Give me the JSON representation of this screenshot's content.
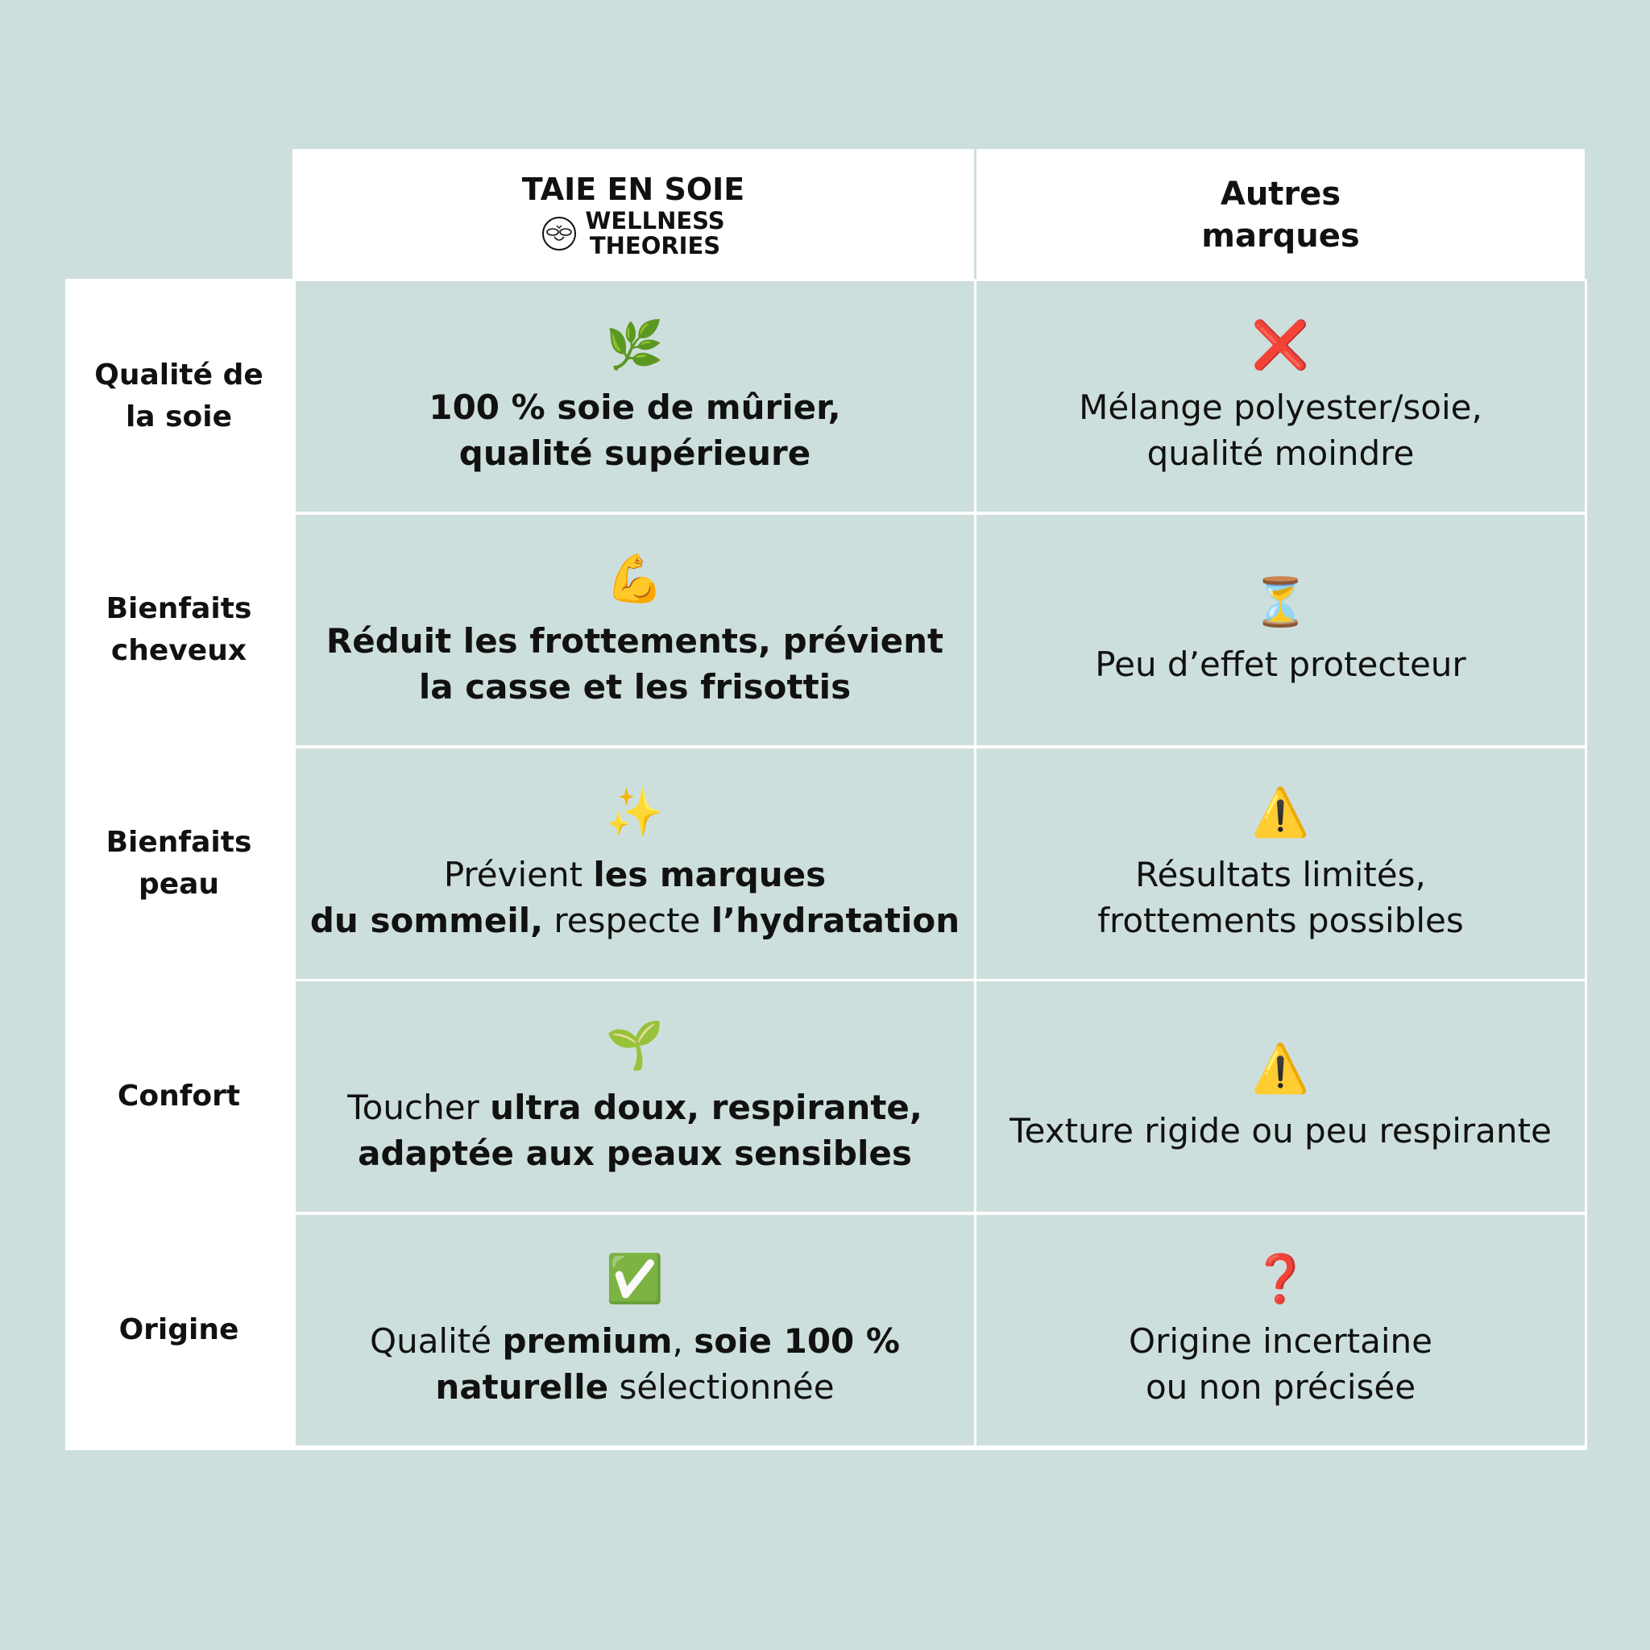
{
  "header": {
    "col1_title": "TAIE EN SOIE",
    "col1_brand_line1": "WELLNESS",
    "col1_brand_line2": "THEORIES",
    "col1_brand_logo": "bee-logo",
    "col2_line1": "Autres",
    "col2_line2": "marques"
  },
  "colors": {
    "background": "#cddfdc",
    "cell_white": "#ffffff",
    "text": "#111111"
  },
  "rows": [
    {
      "label": [
        "Qualité de",
        "la soie"
      ],
      "ours": {
        "icon": "🌿",
        "icon_name": "herb-icon",
        "lines": [
          [
            {
              "t": "100 % soie de mûrier,",
              "b": true
            }
          ],
          [
            {
              "t": "qualité supérieure",
              "b": true
            }
          ]
        ]
      },
      "others": {
        "icon": "❌",
        "icon_name": "cross-mark-icon",
        "lines": [
          [
            {
              "t": "Mélange polyester/soie,",
              "b": false
            }
          ],
          [
            {
              "t": "qualité moindre",
              "b": false
            }
          ]
        ]
      }
    },
    {
      "label": [
        "Bienfaits",
        "cheveux"
      ],
      "ours": {
        "icon": "💪",
        "icon_name": "flexed-biceps-icon",
        "lines": [
          [
            {
              "t": "Réduit les frottements, prévient",
              "b": true
            }
          ],
          [
            {
              "t": "la casse et les frisottis",
              "b": true
            }
          ]
        ]
      },
      "others": {
        "icon": "⏳",
        "icon_name": "hourglass-icon",
        "lines": [
          [
            {
              "t": "Peu d’effet protecteur",
              "b": false
            }
          ]
        ]
      }
    },
    {
      "label": [
        "Bienfaits",
        "peau"
      ],
      "ours": {
        "icon": "✨",
        "icon_name": "sparkles-icon",
        "lines": [
          [
            {
              "t": "Prévient ",
              "b": false
            },
            {
              "t": "les marques",
              "b": true
            }
          ],
          [
            {
              "t": "du sommeil,",
              "b": true
            },
            {
              "t": " respecte ",
              "b": false
            },
            {
              "t": "l’hydratation",
              "b": true
            }
          ]
        ]
      },
      "others": {
        "icon": "⚠️",
        "icon_name": "warning-icon",
        "lines": [
          [
            {
              "t": "Résultats limités,",
              "b": false
            }
          ],
          [
            {
              "t": "frottements possibles",
              "b": false
            }
          ]
        ]
      }
    },
    {
      "label": [
        "Confort"
      ],
      "ours": {
        "icon": "🌱",
        "icon_name": "seedling-icon",
        "lines": [
          [
            {
              "t": "Toucher ",
              "b": false
            },
            {
              "t": "ultra doux, respirante,",
              "b": true
            }
          ],
          [
            {
              "t": "adaptée aux peaux sensibles",
              "b": true
            }
          ]
        ]
      },
      "others": {
        "icon": "⚠️",
        "icon_name": "warning-icon",
        "lines": [
          [
            {
              "t": "Texture rigide ou peu respirante",
              "b": false
            }
          ]
        ]
      }
    },
    {
      "label": [
        "Origine"
      ],
      "ours": {
        "icon": "✅",
        "icon_name": "check-mark-button-icon",
        "lines": [
          [
            {
              "t": "Qualité ",
              "b": false
            },
            {
              "t": "premium",
              "b": true
            },
            {
              "t": ", ",
              "b": false
            },
            {
              "t": "soie 100 %",
              "b": true
            }
          ],
          [
            {
              "t": "naturelle",
              "b": true
            },
            {
              "t": " sélectionnée",
              "b": false
            }
          ]
        ]
      },
      "others": {
        "icon": "❓",
        "icon_name": "question-mark-icon",
        "lines": [
          [
            {
              "t": "Origine incertaine",
              "b": false
            }
          ],
          [
            {
              "t": "ou non précisée",
              "b": false
            }
          ]
        ]
      }
    }
  ]
}
